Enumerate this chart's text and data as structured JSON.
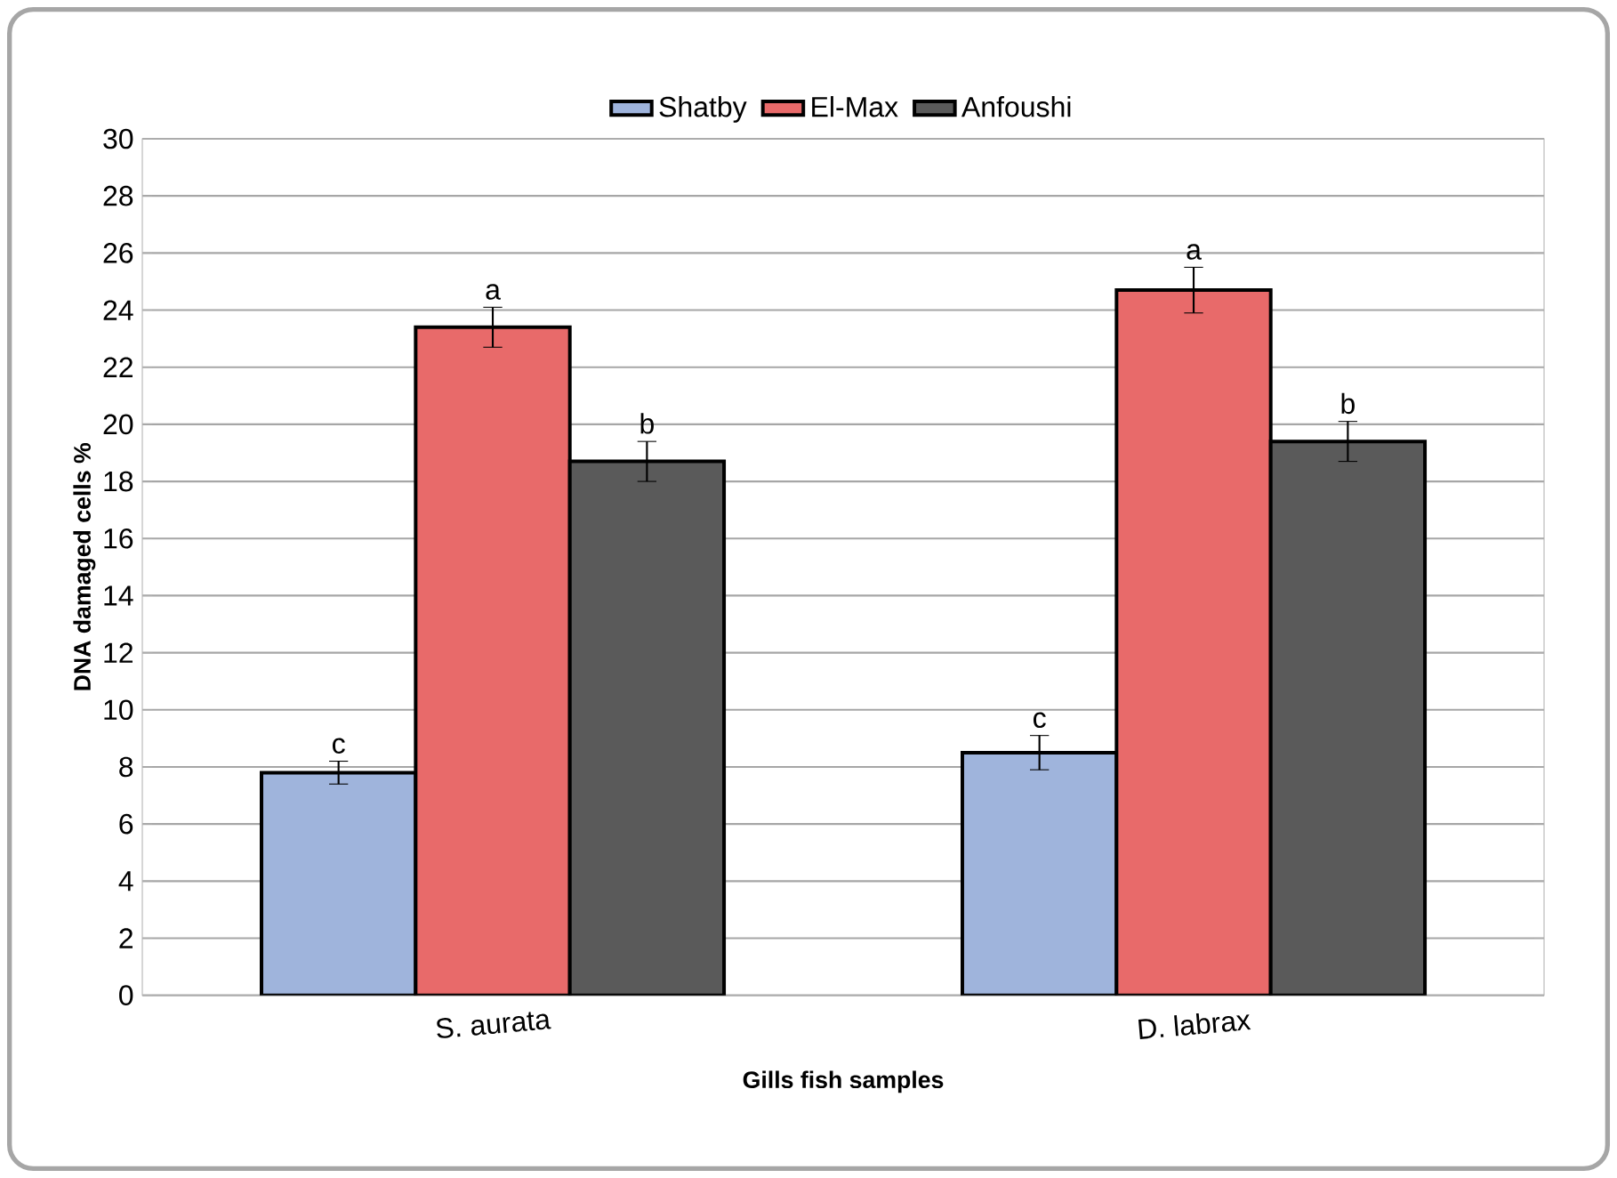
{
  "chart_data": {
    "type": "bar",
    "xlabel": "Gills fish samples",
    "ylabel": "DNA damaged cells %",
    "categories": [
      "S. aurata",
      "D. labrax"
    ],
    "series": [
      {
        "name": "Shatby",
        "color": "#9fb4dc",
        "values": [
          7.8,
          8.5
        ],
        "errors": [
          0.4,
          0.6
        ],
        "value_labels": [
          "c",
          "c"
        ]
      },
      {
        "name": "El-Max",
        "color": "#e86a6a",
        "values": [
          23.4,
          24.7
        ],
        "errors": [
          0.7,
          0.8
        ],
        "value_labels": [
          "a",
          "a"
        ]
      },
      {
        "name": "Anfoushi",
        "color": "#5a5a5a",
        "values": [
          18.7,
          19.4
        ],
        "errors": [
          0.7,
          0.7
        ],
        "value_labels": [
          "b",
          "b"
        ]
      }
    ],
    "ylim": [
      0,
      30
    ],
    "yticks": [
      0,
      2,
      4,
      6,
      8,
      10,
      12,
      14,
      16,
      18,
      20,
      22,
      24,
      26,
      28,
      30
    ],
    "grid": "y",
    "legend": "top"
  }
}
